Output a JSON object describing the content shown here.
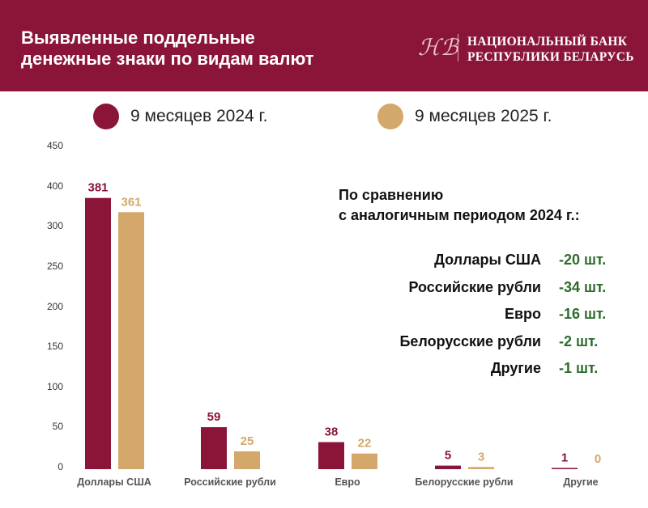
{
  "header": {
    "title_line1": "Выявленные поддельные",
    "title_line2": "денежные знаки по видам валют",
    "bank_line1": "НАЦИОНАЛЬНЫЙ БАНК",
    "bank_line2": "РЕСПУБЛИКИ БЕЛАРУСЬ",
    "logo_monogram": "НБ"
  },
  "comparison": {
    "heading_line1": "По сравнению",
    "heading_line2": "с аналогичным периодом 2024 г.:",
    "rows": [
      {
        "label": "Доллары США",
        "value": "-20 шт."
      },
      {
        "label": "Российские рубли",
        "value": "-34 шт."
      },
      {
        "label": "Евро",
        "value": "-16 шт."
      },
      {
        "label": "Белорусские рубли",
        "value": "-2 шт."
      },
      {
        "label": "Другие",
        "value": "-1 шт."
      }
    ]
  },
  "chart_data": {
    "type": "bar",
    "categories": [
      "Доллары США",
      "Российские рубли",
      "Евро",
      "Белорусские рубли",
      "Другие"
    ],
    "series": [
      {
        "name": "9 месяцев 2024 г.",
        "color": "#8a1538",
        "values": [
          381,
          59,
          38,
          5,
          1
        ]
      },
      {
        "name": "9 месяцев 2025 г.",
        "color": "#d4a86a",
        "values": [
          361,
          25,
          22,
          3,
          0
        ]
      }
    ],
    "ytick_labels": [
      "0",
      "50",
      "100",
      "150",
      "200",
      "250",
      "300",
      "400",
      "450"
    ],
    "ylim": [
      0,
      450
    ],
    "legend": "top",
    "grid": false
  }
}
